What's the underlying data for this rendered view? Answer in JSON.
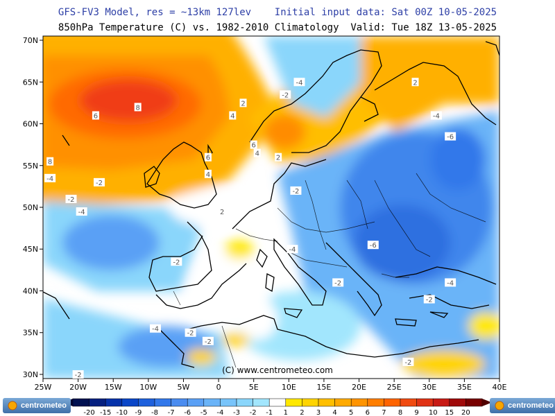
{
  "header": {
    "line1": "GFS-FV3 Model, res = ~13km 127lev    Initial input data: Sat 00Z 10-05-2025",
    "line2": "850hPa Temperature (C) vs. 1982-2010 Climatology  Valid: Tue 18Z 13-05-2025"
  },
  "map": {
    "lon_labels": [
      "25W",
      "20W",
      "15W",
      "10W",
      "5W",
      "0",
      "5E",
      "10E",
      "15E",
      "20E",
      "25E",
      "30E",
      "35E",
      "40E"
    ],
    "lat_labels": [
      "70N",
      "65N",
      "60N",
      "55N",
      "50N",
      "45N",
      "40N",
      "35N",
      "30N"
    ],
    "copyright": "(C) www.centrometeo.com",
    "contour_labels": [
      {
        "text": "6",
        "lon": -17.5,
        "lat": 61
      },
      {
        "text": "8",
        "lon": -11.5,
        "lat": 62
      },
      {
        "text": "8",
        "lon": -24,
        "lat": 55.5
      },
      {
        "text": "-4",
        "lon": -24,
        "lat": 53.5
      },
      {
        "text": "-2",
        "lon": -17,
        "lat": 53
      },
      {
        "text": "-2",
        "lon": -21,
        "lat": 51
      },
      {
        "text": "-4",
        "lon": -19.5,
        "lat": 49.5
      },
      {
        "text": "6",
        "lon": -1.5,
        "lat": 56
      },
      {
        "text": "4",
        "lon": -1.5,
        "lat": 54
      },
      {
        "text": "2",
        "lon": 0.5,
        "lat": 49.5
      },
      {
        "text": "4",
        "lon": 2,
        "lat": 61
      },
      {
        "text": "2",
        "lon": 3.5,
        "lat": 62.5
      },
      {
        "text": "6",
        "lon": 5,
        "lat": 57.5
      },
      {
        "text": "4",
        "lon": 5.5,
        "lat": 56.5
      },
      {
        "text": "2",
        "lon": 8.5,
        "lat": 56
      },
      {
        "text": "-2",
        "lon": 9.5,
        "lat": 63.5
      },
      {
        "text": "-4",
        "lon": 11.5,
        "lat": 65
      },
      {
        "text": "2",
        "lon": 28,
        "lat": 65
      },
      {
        "text": "-4",
        "lon": 31,
        "lat": 61
      },
      {
        "text": "-6",
        "lon": 33,
        "lat": 58.5
      },
      {
        "text": "-2",
        "lon": 11,
        "lat": 52
      },
      {
        "text": "-6",
        "lon": 22,
        "lat": 45.5
      },
      {
        "text": "-4",
        "lon": 10.5,
        "lat": 45
      },
      {
        "text": "-2",
        "lon": -6,
        "lat": 43.5
      },
      {
        "text": "-2",
        "lon": 17,
        "lat": 41
      },
      {
        "text": "-4",
        "lon": 33,
        "lat": 41
      },
      {
        "text": "-2",
        "lon": 30,
        "lat": 39
      },
      {
        "text": "-4",
        "lon": -9,
        "lat": 35.5
      },
      {
        "text": "-2",
        "lon": -4,
        "lat": 35
      },
      {
        "text": "-2",
        "lon": -1.5,
        "lat": 34
      },
      {
        "text": "-2",
        "lon": 27,
        "lat": 31.5
      },
      {
        "text": "-2",
        "lon": -20,
        "lat": 30
      }
    ]
  },
  "legend": {
    "ticks": [
      "-20",
      "-15",
      "-10",
      "-9",
      "-8",
      "-7",
      "-6",
      "-5",
      "-4",
      "-3",
      "-2",
      "-1",
      "1",
      "2",
      "3",
      "4",
      "5",
      "6",
      "7",
      "8",
      "9",
      "10",
      "15",
      "20"
    ],
    "colors": [
      "#001050",
      "#052080",
      "#0532aa",
      "#0a46c8",
      "#1e60dc",
      "#3278ea",
      "#4a8cf0",
      "#5aa0f5",
      "#6ab4f8",
      "#78c4fa",
      "#8ad6fb",
      "#a2e6fd",
      "#ffffff",
      "#ffe800",
      "#ffd400",
      "#ffbf00",
      "#ffaa00",
      "#ff9400",
      "#ff7e00",
      "#ff6400",
      "#f04a10",
      "#e03214",
      "#c81a14",
      "#a00a0a",
      "#780000"
    ]
  },
  "branding": {
    "left_logo": "centrometeo",
    "right_logo": "centrometeo"
  }
}
